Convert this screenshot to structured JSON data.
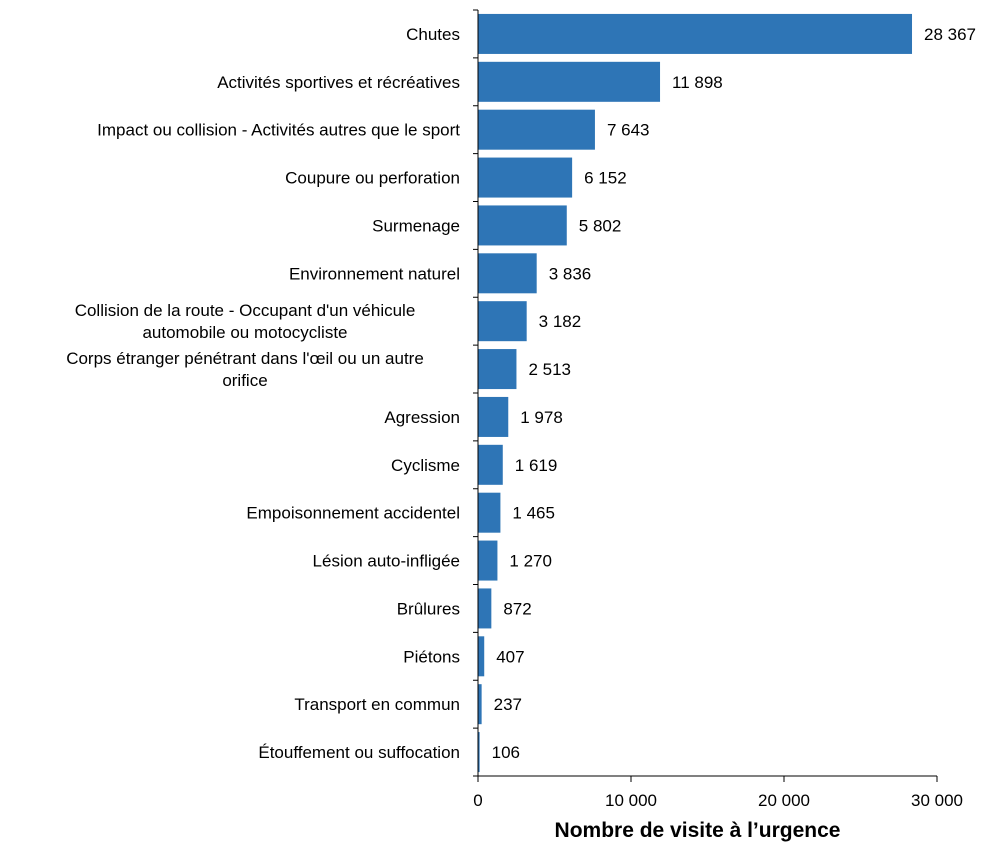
{
  "chart_data": {
    "type": "bar",
    "orientation": "horizontal",
    "categories": [
      "Chutes",
      "Activités sportives et récréatives",
      "Impact ou collision - Activités autres que le sport",
      "Coupure ou perforation",
      "Surmenage",
      "Environnement naturel",
      "Collision de la route - Occupant d'un véhicule automobile ou motocycliste",
      "Corps étranger pénétrant dans l'œil ou un autre orifice",
      "Agression",
      "Cyclisme",
      "Empoisonnement accidentel",
      "Lésion auto-infligée",
      "Brûlures",
      "Piétons",
      "Transport en commun",
      "Étouffement ou suffocation"
    ],
    "category_lines": [
      [
        "Chutes"
      ],
      [
        "Activités sportives et récréatives"
      ],
      [
        "Impact ou collision - Activités autres que le sport"
      ],
      [
        "Coupure ou perforation"
      ],
      [
        "Surmenage"
      ],
      [
        "Environnement naturel"
      ],
      [
        "Collision de la route - Occupant d'un véhicule",
        "automobile ou motocycliste"
      ],
      [
        "Corps étranger pénétrant dans l'œil ou un autre",
        "orifice"
      ],
      [
        "Agression"
      ],
      [
        "Cyclisme"
      ],
      [
        "Empoisonnement accidentel"
      ],
      [
        "Lésion auto-infligée"
      ],
      [
        "Brûlures"
      ],
      [
        "Piétons"
      ],
      [
        "Transport en commun"
      ],
      [
        "Étouffement ou suffocation"
      ]
    ],
    "values": [
      28367,
      11898,
      7643,
      6152,
      5802,
      3836,
      3182,
      2513,
      1978,
      1619,
      1465,
      1270,
      872,
      407,
      237,
      106
    ],
    "value_labels": [
      "28 367",
      "11 898",
      "7 643",
      "6 152",
      "5 802",
      "3 836",
      "3 182",
      "2 513",
      "1 978",
      "1 619",
      "1 465",
      "1 270",
      "872",
      "407",
      "237",
      "106"
    ],
    "xlim": [
      0,
      30000
    ],
    "xticks": [
      0,
      10000,
      20000,
      30000
    ],
    "xtick_labels": [
      "0",
      "10 000",
      "20 000",
      "30 000"
    ],
    "xlabel": "Nombre de visite à l’urgence",
    "ylabel": "",
    "title": "",
    "grid": false,
    "bar_color": "#2E75B6"
  }
}
